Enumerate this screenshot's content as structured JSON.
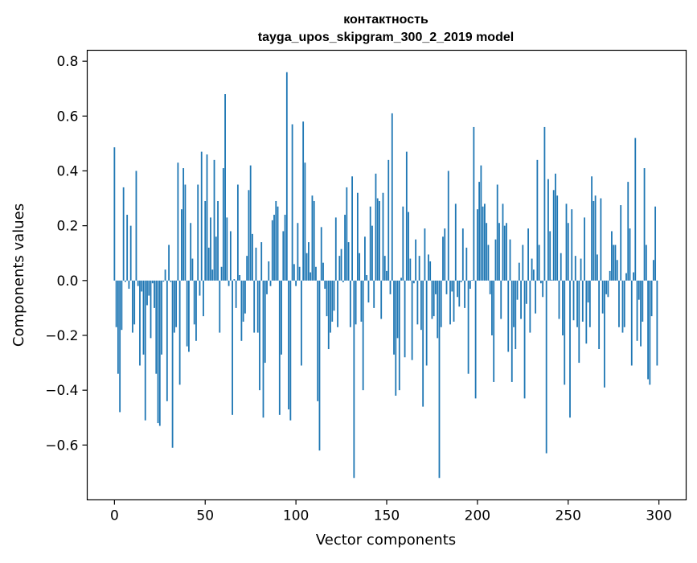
{
  "chart_data": {
    "type": "bar",
    "title": "контактность",
    "subtitle": "tayga_upos_skipgram_300_2_2019 model",
    "xlabel": "Vector components",
    "ylabel": "Components values",
    "xlim": [
      -15,
      315
    ],
    "ylim": [
      -0.8,
      0.84
    ],
    "xticks": [
      0,
      50,
      100,
      150,
      200,
      250,
      300
    ],
    "xtick_labels": [
      "0",
      "50",
      "100",
      "150",
      "200",
      "250",
      "300"
    ],
    "yticks": [
      -0.6,
      -0.4,
      -0.2,
      0.0,
      0.2,
      0.4,
      0.6,
      0.8
    ],
    "ytick_labels": [
      "−0.6",
      "−0.4",
      "−0.2",
      "0.0",
      "0.2",
      "0.4",
      "0.6",
      "0.8"
    ],
    "grid": false,
    "color": "#1f77b4",
    "values": [
      0.486,
      -0.17,
      -0.34,
      -0.48,
      -0.18,
      0.34,
      -0.005,
      0.24,
      -0.03,
      0.2,
      -0.19,
      -0.16,
      0.4,
      -0.02,
      -0.31,
      -0.04,
      -0.27,
      -0.51,
      -0.09,
      -0.055,
      -0.21,
      -0.01,
      -0.1,
      -0.34,
      -0.52,
      -0.53,
      -0.27,
      -0.004,
      0.04,
      -0.44,
      0.13,
      -0.005,
      -0.61,
      -0.19,
      -0.17,
      0.43,
      -0.38,
      0.26,
      0.41,
      0.35,
      -0.24,
      -0.26,
      0.21,
      0.08,
      -0.16,
      -0.22,
      0.35,
      -0.055,
      0.47,
      -0.13,
      0.29,
      0.46,
      0.12,
      0.23,
      0.04,
      0.44,
      0.16,
      0.29,
      -0.19,
      0.05,
      0.41,
      0.68,
      0.23,
      -0.02,
      0.18,
      -0.49,
      0.005,
      -0.1,
      0.35,
      0.02,
      -0.22,
      -0.15,
      -0.12,
      0.09,
      0.33,
      0.42,
      0.17,
      -0.19,
      0.12,
      -0.19,
      -0.4,
      0.14,
      -0.5,
      -0.3,
      -0.05,
      0.07,
      -0.02,
      0.22,
      0.24,
      0.29,
      0.27,
      -0.49,
      -0.27,
      0.18,
      0.24,
      0.76,
      -0.47,
      -0.51,
      0.57,
      0.06,
      -0.02,
      0.21,
      0.05,
      -0.31,
      0.58,
      0.43,
      0.1,
      0.14,
      0.03,
      0.31,
      0.29,
      0.05,
      -0.44,
      -0.62,
      0.195,
      0.065,
      -0.03,
      -0.13,
      -0.25,
      -0.19,
      -0.15,
      -0.11,
      0.23,
      -0.17,
      0.09,
      0.115,
      -0.006,
      0.24,
      0.34,
      0.14,
      -0.17,
      0.38,
      -0.72,
      -0.16,
      0.32,
      0.1,
      -0.15,
      -0.4,
      0.16,
      0.02,
      -0.08,
      0.27,
      0.2,
      -0.1,
      0.39,
      0.3,
      0.29,
      -0.14,
      0.32,
      0.09,
      0.035,
      0.44,
      -0.05,
      0.61,
      -0.27,
      -0.42,
      -0.21,
      -0.4,
      0.01,
      0.27,
      -0.28,
      0.47,
      0.25,
      0.08,
      -0.29,
      -0.01,
      0.15,
      -0.16,
      0.09,
      -0.18,
      -0.46,
      0.19,
      -0.31,
      0.095,
      0.07,
      -0.14,
      -0.13,
      -0.05,
      -0.21,
      -0.72,
      -0.17,
      0.16,
      0.19,
      -0.05,
      0.4,
      -0.16,
      -0.04,
      -0.15,
      0.28,
      -0.06,
      -0.095,
      -0.006,
      0.19,
      -0.1,
      0.12,
      -0.34,
      -0.03,
      0.002,
      0.56,
      -0.43,
      0.26,
      0.36,
      0.42,
      0.27,
      0.28,
      0.21,
      0.13,
      -0.05,
      -0.2,
      -0.37,
      0.15,
      0.35,
      0.21,
      -0.14,
      0.28,
      0.2,
      0.21,
      -0.26,
      0.15,
      -0.37,
      -0.17,
      -0.25,
      -0.07,
      0.065,
      -0.14,
      0.13,
      -0.43,
      -0.085,
      0.19,
      -0.19,
      0.08,
      0.04,
      -0.12,
      0.44,
      0.13,
      -0.01,
      -0.06,
      0.56,
      -0.63,
      0.37,
      0.18,
      0.003,
      0.33,
      0.39,
      0.31,
      -0.14,
      0.1,
      -0.2,
      -0.38,
      0.28,
      0.21,
      -0.5,
      0.26,
      -0.145,
      0.09,
      -0.17,
      -0.3,
      0.08,
      -0.15,
      0.23,
      -0.23,
      -0.08,
      -0.17,
      0.38,
      0.29,
      0.31,
      0.095,
      -0.25,
      0.3,
      -0.12,
      -0.39,
      -0.05,
      -0.06,
      0.035,
      0.18,
      0.13,
      0.13,
      0.075,
      -0.17,
      0.275,
      -0.19,
      -0.17,
      0.027,
      0.36,
      0.19,
      -0.31,
      0.03,
      0.52,
      -0.22,
      -0.07,
      -0.24,
      -0.15,
      0.41,
      0.13,
      -0.36,
      -0.38,
      -0.13,
      0.075,
      0.27,
      -0.31
    ]
  }
}
